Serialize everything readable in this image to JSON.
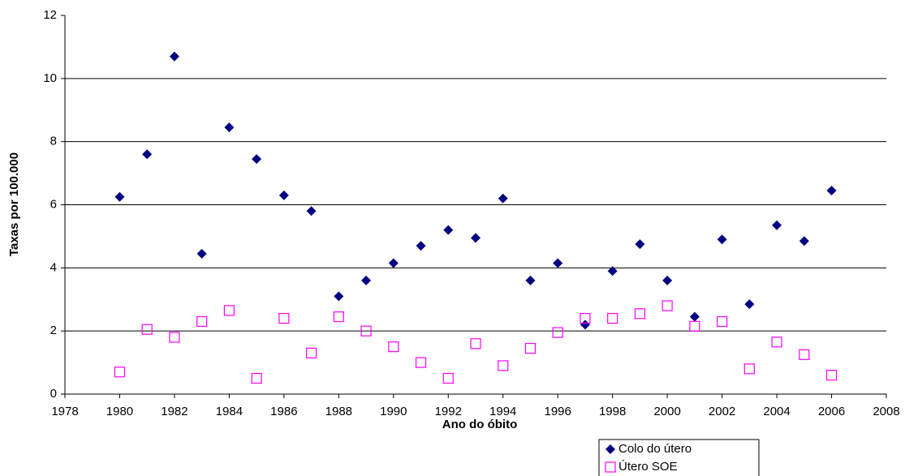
{
  "chart_data": {
    "type": "scatter",
    "x_label": "Ano do óbito",
    "y_label": "Taxas por 100.000",
    "x": [
      1980,
      1981,
      1982,
      1983,
      1984,
      1985,
      1986,
      1987,
      1988,
      1989,
      1990,
      1991,
      1992,
      1993,
      1994,
      1995,
      1996,
      1997,
      1998,
      1999,
      2000,
      2001,
      2002,
      2003,
      2004,
      2005,
      2006
    ],
    "series": [
      {
        "name": "Colo do útero",
        "color": "#000080",
        "marker": "diamond",
        "values": [
          6.25,
          7.6,
          10.7,
          4.45,
          8.45,
          7.45,
          6.3,
          5.8,
          3.1,
          3.6,
          4.15,
          4.7,
          5.2,
          4.95,
          6.2,
          3.6,
          4.15,
          2.2,
          3.9,
          4.75,
          3.6,
          2.45,
          4.9,
          2.85,
          5.35,
          4.85,
          6.45
        ]
      },
      {
        "name": "Útero SOE",
        "color": "#ff00ff",
        "marker": "square",
        "values": [
          0.7,
          2.05,
          1.8,
          2.3,
          2.65,
          0.5,
          2.4,
          1.3,
          2.45,
          2.0,
          1.5,
          1.0,
          0.5,
          1.6,
          0.9,
          1.45,
          1.95,
          2.4,
          2.4,
          2.55,
          2.8,
          2.15,
          2.3,
          0.8,
          1.65,
          1.25,
          0.6
        ]
      }
    ],
    "xlim": [
      1978,
      2008
    ],
    "xticks": [
      1978,
      1980,
      1982,
      1984,
      1986,
      1988,
      1990,
      1992,
      1994,
      1996,
      1998,
      2000,
      2002,
      2004,
      2006,
      2008
    ],
    "ylim": [
      0,
      12
    ],
    "yticks": [
      0,
      2,
      4,
      6,
      8,
      10,
      12
    ],
    "grid": true,
    "legend": "bottom-right"
  }
}
